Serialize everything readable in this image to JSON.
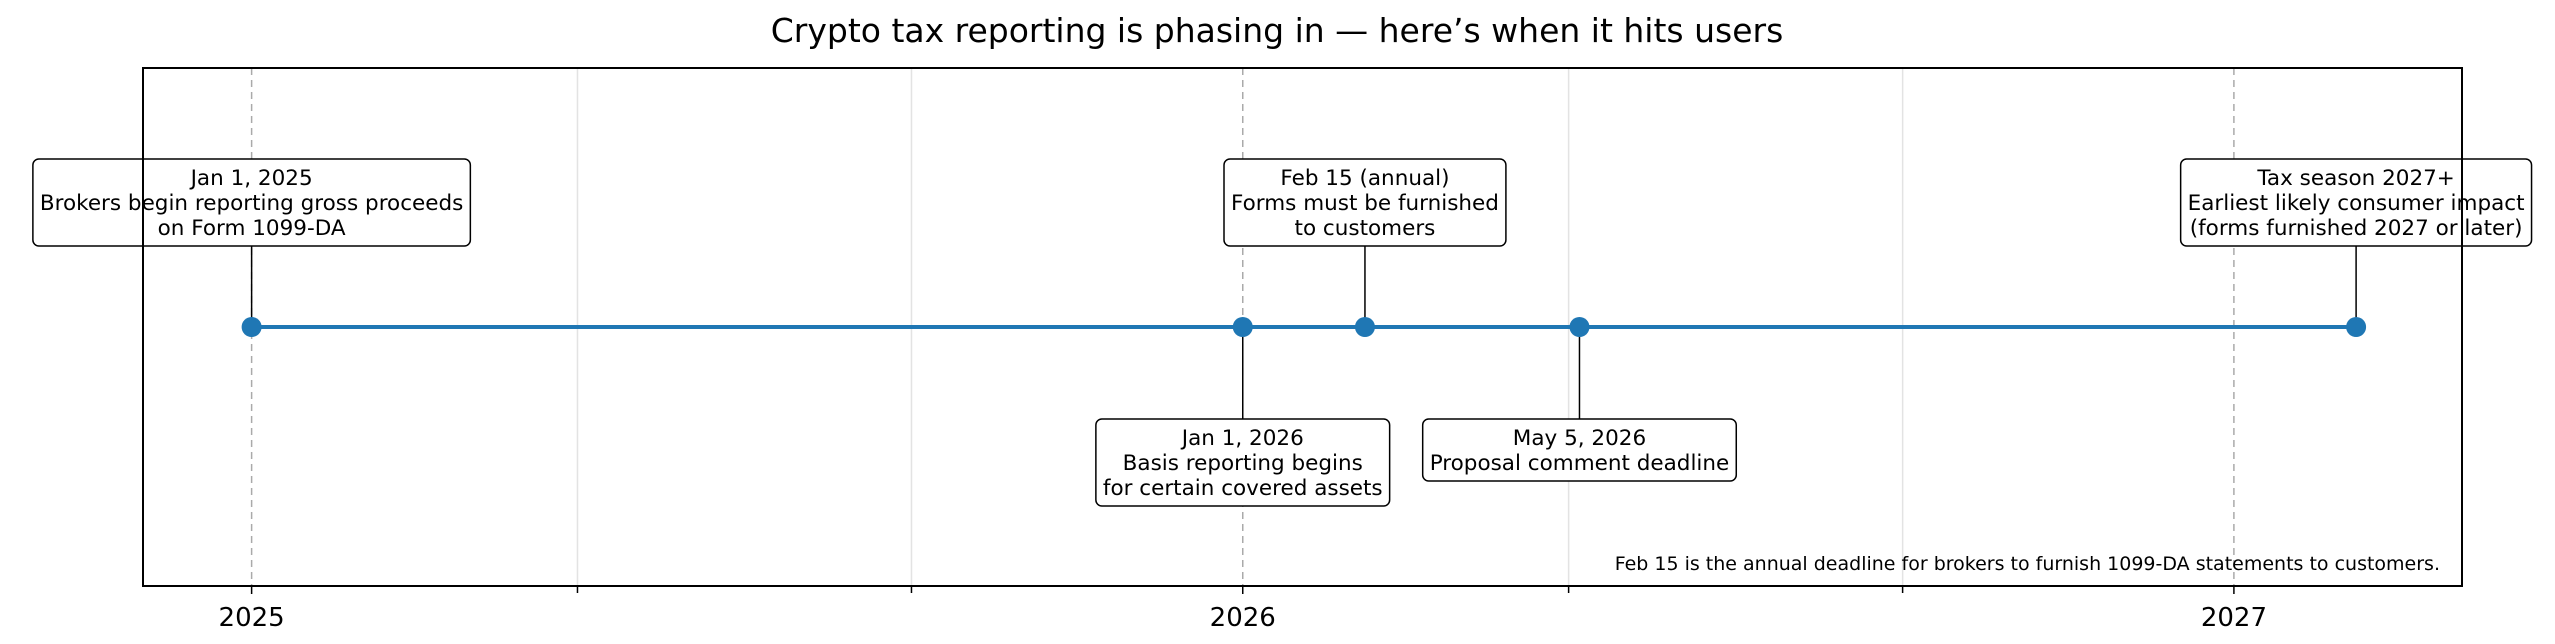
{
  "chart_data": {
    "type": "timeline",
    "title": "Crypto tax reporting is phasing in — here’s when it hits users",
    "xlim": [
      "2024-11-22",
      "2027-03-26"
    ],
    "x_ticks": [
      {
        "date": "2025-01-01",
        "label": "2025"
      },
      {
        "date": "2026-01-01",
        "label": "2026"
      },
      {
        "date": "2027-01-01",
        "label": "2027"
      }
    ],
    "minor_ticks": [
      "2025-05-01",
      "2025-09-01",
      "2026-05-01",
      "2026-09-01"
    ],
    "grid": true,
    "line_color": "#1f77b4",
    "events": [
      {
        "date": "2025-01-01",
        "lines": [
          "Jan 1, 2025",
          "Brokers begin reporting gross proceeds",
          "on Form 1099-DA"
        ],
        "placement": "above"
      },
      {
        "date": "2026-01-01",
        "lines": [
          "Jan 1, 2026",
          "Basis reporting begins",
          "for certain covered assets"
        ],
        "placement": "below"
      },
      {
        "date": "2026-02-15",
        "lines": [
          "Feb 15 (annual)",
          "Forms must be furnished",
          "to customers"
        ],
        "placement": "above"
      },
      {
        "date": "2026-05-05",
        "lines": [
          "May 5, 2026",
          "Proposal comment deadline"
        ],
        "placement": "below"
      },
      {
        "date": "2027-02-15",
        "lines": [
          "Tax season 2027+",
          "Earliest likely consumer impact",
          "(forms furnished 2027 or later)"
        ],
        "placement": "above"
      }
    ],
    "annotation": "Feb 15 is the annual deadline for brokers to furnish 1099-DA statements to customers."
  }
}
